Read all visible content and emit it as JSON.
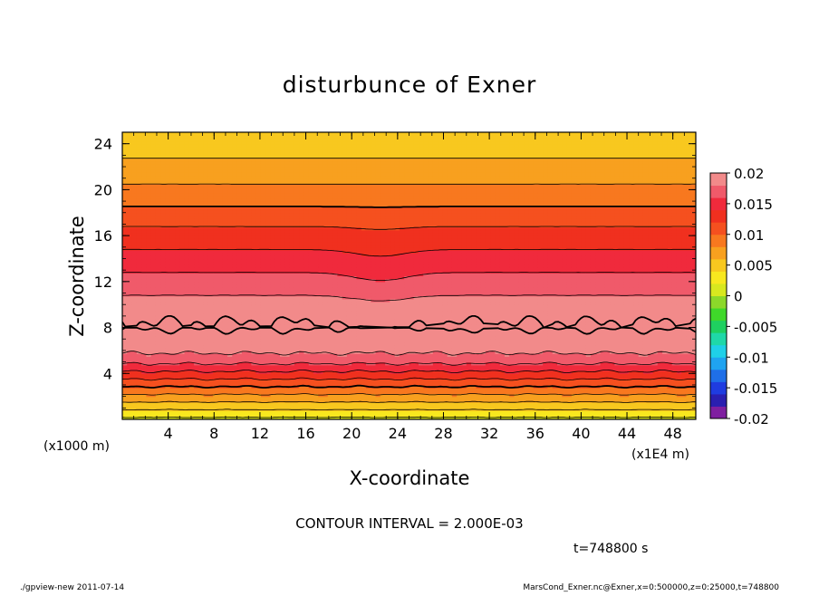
{
  "chart_data": {
    "type": "heatmap",
    "title": "disturbunce of Exner",
    "xlabel": "X-coordinate",
    "ylabel": "Z-coordinate",
    "x_unit_note": "(x1E4 m)",
    "y_unit_note": "(x1000 m)",
    "xlim": [
      0,
      50
    ],
    "ylim": [
      0,
      25
    ],
    "xticks": [
      4,
      8,
      12,
      16,
      20,
      24,
      28,
      32,
      36,
      40,
      44,
      48
    ],
    "yticks": [
      4,
      8,
      12,
      16,
      20,
      24
    ],
    "x_tick_labels": [
      "4",
      "8",
      "12",
      "16",
      "20",
      "24",
      "28",
      "32",
      "36",
      "40",
      "44",
      "48"
    ],
    "y_tick_labels": [
      "4",
      "8",
      "12",
      "16",
      "20",
      "24"
    ],
    "colorbar": {
      "min": -0.02,
      "max": 0.02,
      "step": 0.002,
      "tick_values": [
        0.02,
        0.015,
        0.01,
        0.005,
        0,
        -0.005,
        -0.01,
        -0.015,
        -0.02
      ],
      "tick_labels": [
        "0.02",
        "0.015",
        "0.01",
        "0.005",
        "0",
        "-0.005",
        "-0.01",
        "-0.015",
        "-0.02"
      ],
      "colors": [
        "#7f1fa0",
        "#2a1fb0",
        "#1f3ce0",
        "#1f6fe8",
        "#1fa3f0",
        "#1fd0e8",
        "#1fd8a8",
        "#1fd060",
        "#3fd82a",
        "#8cd82a",
        "#d8e81f",
        "#f8e81f",
        "#f8c81f",
        "#f8a01f",
        "#f8781f",
        "#f5501f",
        "#f0301f",
        "#f02a3c",
        "#f05a6a",
        "#f28a8a"
      ]
    },
    "profile": {
      "z": [
        0,
        1,
        2,
        3,
        4,
        5,
        6,
        7,
        8,
        9,
        10,
        11,
        12,
        13,
        14,
        15,
        16,
        17,
        18,
        19,
        20,
        21,
        22,
        23,
        24,
        25
      ],
      "value": [
        0.0015,
        0.0045,
        0.0075,
        0.0105,
        0.0135,
        0.0165,
        0.0185,
        0.0195,
        0.0201,
        0.0199,
        0.0189,
        0.0178,
        0.0168,
        0.0158,
        0.0148,
        0.0138,
        0.0128,
        0.0118,
        0.0106,
        0.0095,
        0.0085,
        0.0075,
        0.0066,
        0.0058,
        0.005,
        0.0045
      ]
    }
  },
  "annotations": {
    "contour_interval": "CONTOUR INTERVAL = 2.000E-03",
    "time": "t=748800 s",
    "footer_left": "./gpview-new   2011-07-14",
    "footer_right": "MarsCond_Exner.nc@Exner,x=0:500000,z=0:25000,t=748800"
  }
}
